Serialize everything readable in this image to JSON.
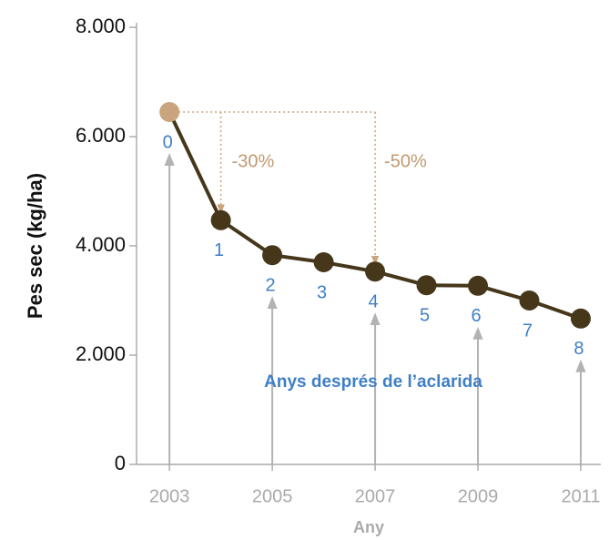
{
  "chart_data": {
    "type": "line",
    "x": [
      2003,
      2004,
      2005,
      2006,
      2007,
      2008,
      2009,
      2010,
      2011
    ],
    "values": [
      6450,
      4470,
      3830,
      3700,
      3530,
      3280,
      3270,
      3000,
      2670
    ],
    "point_labels": [
      "0",
      "1",
      "2",
      "3",
      "4",
      "5",
      "6",
      "7",
      "8"
    ],
    "color": "#46371b",
    "first_point_color": "#c9a47c",
    "point_label_color": "#3f7fc6",
    "y_axis_label": "Pes sec (kg/ha)",
    "x_axis_label": "Any",
    "ylim": [
      0,
      8000
    ],
    "yticks": [
      {
        "value": 0,
        "label": "0"
      },
      {
        "value": 2000,
        "label": "2.000"
      },
      {
        "value": 4000,
        "label": "4.000"
      },
      {
        "value": 6000,
        "label": "6.000"
      },
      {
        "value": 8000,
        "label": "8.000"
      }
    ],
    "xlim": [
      2002.36,
      2011.39
    ],
    "xticks": [
      2003,
      2005,
      2007,
      2009,
      2011
    ],
    "annotations": {
      "drop1": "-30%",
      "drop2": "-50%",
      "note": "Anys després de l’aclarida"
    }
  }
}
